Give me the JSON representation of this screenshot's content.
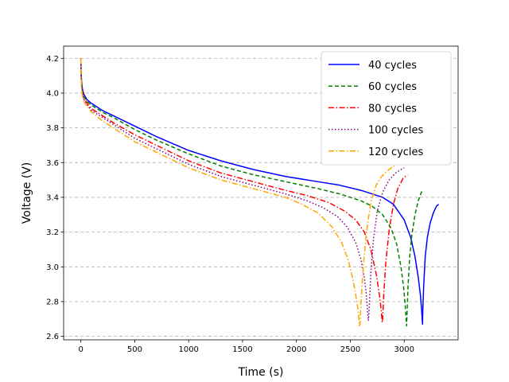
{
  "chart_data": {
    "type": "line",
    "title": "",
    "xlabel": "Time (s)",
    "ylabel": "Voltage (V)",
    "xlim": [
      -160,
      3500
    ],
    "ylim": [
      2.58,
      4.27
    ],
    "xticks": [
      0,
      500,
      1000,
      1500,
      2000,
      2500,
      3000
    ],
    "yticks": [
      2.6,
      2.8,
      3.0,
      3.2,
      3.4,
      3.6,
      3.8,
      4.0,
      4.2
    ],
    "ytick_labels": [
      "2.6",
      "2.8",
      "3.0",
      "3.2",
      "3.4",
      "3.6",
      "3.8",
      "4.0",
      "4.2"
    ],
    "grid": "y-dashed",
    "legend_position": "top-right",
    "series": [
      {
        "name": "40 cycles",
        "color": "#0000ff",
        "dash": "solid",
        "x": [
          0,
          2,
          6,
          15,
          30,
          60,
          100,
          200,
          300,
          500,
          700,
          1000,
          1300,
          1600,
          1900,
          2200,
          2400,
          2600,
          2800,
          2900,
          3000,
          3060,
          3100,
          3130,
          3150,
          3162,
          3168,
          3170,
          3172,
          3180,
          3195,
          3215,
          3240,
          3270,
          3300,
          3320
        ],
        "y": [
          4.2,
          4.12,
          4.07,
          4.02,
          3.99,
          3.96,
          3.94,
          3.9,
          3.87,
          3.81,
          3.75,
          3.67,
          3.61,
          3.56,
          3.52,
          3.49,
          3.47,
          3.44,
          3.4,
          3.36,
          3.27,
          3.17,
          3.06,
          2.94,
          2.84,
          2.75,
          2.69,
          2.67,
          2.74,
          2.88,
          3.06,
          3.17,
          3.25,
          3.31,
          3.35,
          3.36
        ]
      },
      {
        "name": "60 cycles",
        "color": "#008000",
        "dash": "dashed",
        "x": [
          0,
          2,
          6,
          15,
          30,
          60,
          100,
          200,
          300,
          500,
          700,
          1000,
          1300,
          1600,
          1900,
          2200,
          2400,
          2600,
          2700,
          2800,
          2880,
          2930,
          2970,
          2995,
          3010,
          3018,
          3022,
          3026,
          3035,
          3050,
          3070,
          3100,
          3130,
          3160,
          3180
        ],
        "y": [
          4.2,
          4.12,
          4.06,
          4.01,
          3.98,
          3.95,
          3.93,
          3.89,
          3.86,
          3.79,
          3.73,
          3.65,
          3.58,
          3.53,
          3.49,
          3.45,
          3.42,
          3.38,
          3.35,
          3.3,
          3.22,
          3.13,
          3.0,
          2.88,
          2.77,
          2.7,
          2.66,
          2.72,
          2.88,
          3.05,
          3.18,
          3.3,
          3.38,
          3.43,
          3.44
        ]
      },
      {
        "name": "80 cycles",
        "color": "#ff0000",
        "dash": "dashdot",
        "x": [
          0,
          2,
          6,
          15,
          30,
          60,
          100,
          200,
          300,
          500,
          700,
          1000,
          1300,
          1600,
          1900,
          2100,
          2300,
          2450,
          2550,
          2630,
          2690,
          2740,
          2770,
          2785,
          2792,
          2796,
          2800,
          2810,
          2830,
          2860,
          2900,
          2940,
          2990,
          3030
        ],
        "y": [
          4.2,
          4.11,
          4.05,
          4.0,
          3.97,
          3.94,
          3.91,
          3.87,
          3.83,
          3.76,
          3.7,
          3.61,
          3.54,
          3.49,
          3.44,
          3.41,
          3.37,
          3.32,
          3.27,
          3.2,
          3.1,
          2.96,
          2.84,
          2.76,
          2.71,
          2.68,
          2.7,
          2.84,
          3.03,
          3.21,
          3.36,
          3.45,
          3.51,
          3.53
        ]
      },
      {
        "name": "100 cycles",
        "color": "#800080",
        "dash": "dotted",
        "x": [
          0,
          2,
          6,
          15,
          30,
          60,
          100,
          200,
          300,
          500,
          700,
          1000,
          1300,
          1600,
          1900,
          2100,
          2250,
          2380,
          2470,
          2550,
          2600,
          2630,
          2648,
          2658,
          2664,
          2668,
          2675,
          2690,
          2715,
          2750,
          2800,
          2860,
          2920,
          2970,
          3000
        ],
        "y": [
          4.2,
          4.1,
          4.04,
          3.99,
          3.96,
          3.93,
          3.9,
          3.86,
          3.82,
          3.74,
          3.68,
          3.59,
          3.52,
          3.47,
          3.42,
          3.38,
          3.34,
          3.29,
          3.23,
          3.14,
          3.04,
          2.94,
          2.84,
          2.76,
          2.71,
          2.69,
          2.76,
          2.96,
          3.16,
          3.32,
          3.43,
          3.5,
          3.54,
          3.56,
          3.57
        ]
      },
      {
        "name": "120 cycles",
        "color": "#ffa500",
        "dash": "dashdot",
        "x": [
          0,
          2,
          6,
          15,
          30,
          60,
          100,
          200,
          300,
          500,
          700,
          1000,
          1300,
          1600,
          1900,
          2050,
          2200,
          2330,
          2420,
          2480,
          2520,
          2550,
          2570,
          2580,
          2585,
          2590,
          2600,
          2620,
          2650,
          2690,
          2740,
          2790,
          2840,
          2880,
          2910
        ],
        "y": [
          4.2,
          4.1,
          4.03,
          3.98,
          3.95,
          3.92,
          3.89,
          3.84,
          3.8,
          3.72,
          3.66,
          3.57,
          3.5,
          3.45,
          3.4,
          3.36,
          3.31,
          3.23,
          3.14,
          3.04,
          2.94,
          2.84,
          2.76,
          2.7,
          2.66,
          2.67,
          2.8,
          3.0,
          3.2,
          3.37,
          3.47,
          3.52,
          3.55,
          3.57,
          3.58
        ]
      }
    ]
  }
}
